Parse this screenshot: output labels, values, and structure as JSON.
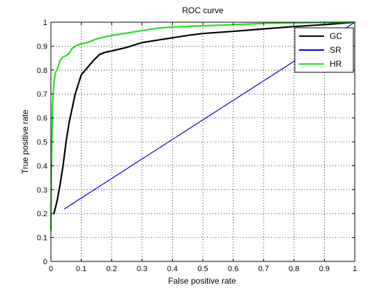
{
  "chart_data": {
    "type": "line",
    "title": "ROC curve",
    "xlabel": "False positive rate",
    "ylabel": "True positive rate",
    "xlim": [
      0,
      1
    ],
    "ylim": [
      0,
      1
    ],
    "x_ticks": [
      "0",
      "0.1",
      "0.2",
      "0.3",
      "0.4",
      "0.5",
      "0.6",
      "0.7",
      "0.8",
      "0.9",
      "1"
    ],
    "y_ticks": [
      "0",
      "0.1",
      "0.2",
      "0.3",
      "0.4",
      "0.5",
      "0.6",
      "0.7",
      "0.8",
      "0.9",
      "1"
    ],
    "grid": true,
    "legend_position": "top-right",
    "series": [
      {
        "name": "GC",
        "color": "#000000",
        "points": [
          [
            0.01,
            0.2
          ],
          [
            0.02,
            0.25
          ],
          [
            0.03,
            0.32
          ],
          [
            0.04,
            0.4
          ],
          [
            0.05,
            0.5
          ],
          [
            0.06,
            0.58
          ],
          [
            0.07,
            0.64
          ],
          [
            0.08,
            0.7
          ],
          [
            0.09,
            0.74
          ],
          [
            0.1,
            0.78
          ],
          [
            0.12,
            0.81
          ],
          [
            0.14,
            0.84
          ],
          [
            0.16,
            0.865
          ],
          [
            0.18,
            0.875
          ],
          [
            0.2,
            0.88
          ],
          [
            0.25,
            0.895
          ],
          [
            0.3,
            0.915
          ],
          [
            0.35,
            0.925
          ],
          [
            0.4,
            0.935
          ],
          [
            0.45,
            0.945
          ],
          [
            0.5,
            0.953
          ],
          [
            0.6,
            0.962
          ],
          [
            0.7,
            0.972
          ],
          [
            0.8,
            0.982
          ],
          [
            0.9,
            0.99
          ],
          [
            0.95,
            0.995
          ],
          [
            1.0,
            1.0
          ]
        ]
      },
      {
        "name": "SR",
        "color": "#0000cc",
        "points": [
          [
            0.045,
            0.22
          ],
          [
            1.0,
            1.0
          ]
        ]
      },
      {
        "name": "HR",
        "color": "#22dd22",
        "points": [
          [
            0.0,
            0.13
          ],
          [
            0.003,
            0.5
          ],
          [
            0.006,
            0.66
          ],
          [
            0.01,
            0.75
          ],
          [
            0.015,
            0.79
          ],
          [
            0.02,
            0.8
          ],
          [
            0.03,
            0.84
          ],
          [
            0.04,
            0.855
          ],
          [
            0.05,
            0.86
          ],
          [
            0.06,
            0.87
          ],
          [
            0.07,
            0.89
          ],
          [
            0.08,
            0.9
          ],
          [
            0.1,
            0.91
          ],
          [
            0.12,
            0.915
          ],
          [
            0.15,
            0.93
          ],
          [
            0.18,
            0.94
          ],
          [
            0.2,
            0.945
          ],
          [
            0.25,
            0.955
          ],
          [
            0.3,
            0.965
          ],
          [
            0.35,
            0.975
          ],
          [
            0.4,
            0.98
          ],
          [
            0.5,
            0.985
          ],
          [
            0.6,
            0.99
          ],
          [
            0.7,
            0.995
          ],
          [
            0.8,
            0.997
          ],
          [
            0.9,
            0.999
          ],
          [
            1.0,
            1.0
          ]
        ]
      }
    ]
  }
}
